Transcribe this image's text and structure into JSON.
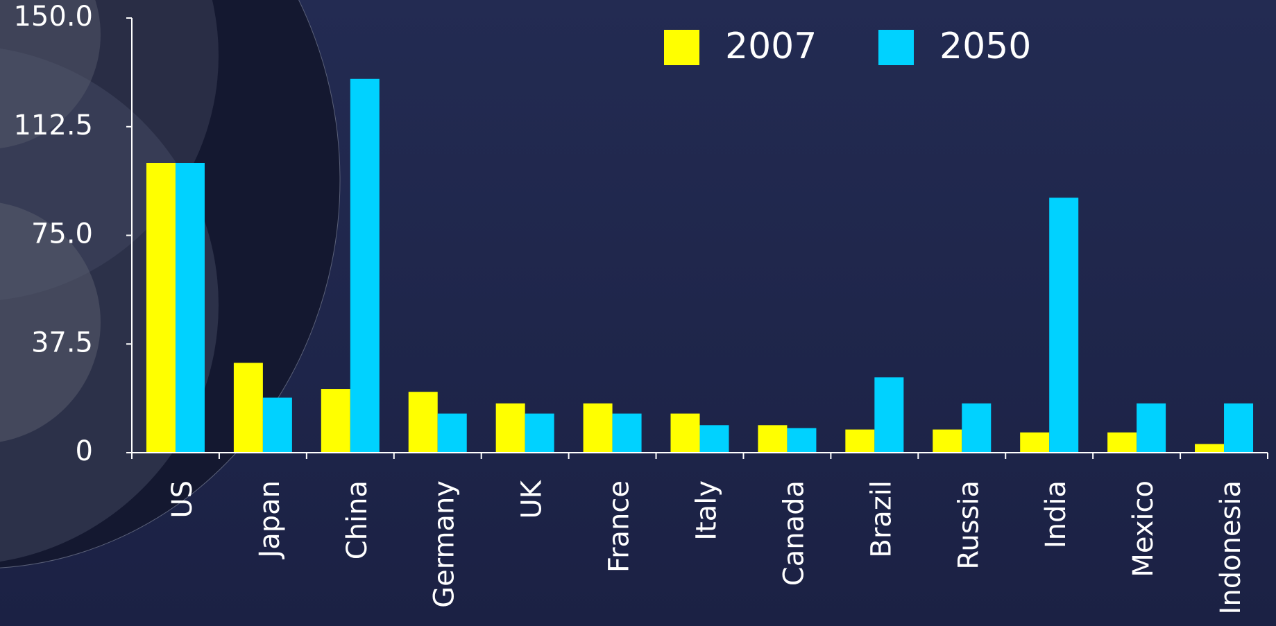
{
  "chart_data": {
    "type": "bar",
    "categories": [
      "US",
      "Japan",
      "China",
      "Germany",
      "UK",
      "France",
      "Italy",
      "Canada",
      "Brazil",
      "Russia",
      "India",
      "Mexico",
      "Indonesia"
    ],
    "series": [
      {
        "name": "2007",
        "color": "#ffff00",
        "values": [
          100,
          31,
          22,
          21,
          17,
          17,
          13.5,
          9.5,
          8,
          8,
          7,
          7,
          3
        ]
      },
      {
        "name": "2050",
        "color": "#00d2ff",
        "values": [
          100,
          19,
          129,
          13.5,
          13.5,
          13.5,
          9.5,
          8.5,
          26,
          17,
          88,
          17,
          17
        ]
      }
    ],
    "ylim": [
      0,
      150
    ],
    "yticks": [
      0,
      37.5,
      {
        "value": 75,
        "label": "75.0"
      },
      112.5,
      {
        "value": 150,
        "label": "150.0"
      }
    ],
    "legend": "top"
  }
}
